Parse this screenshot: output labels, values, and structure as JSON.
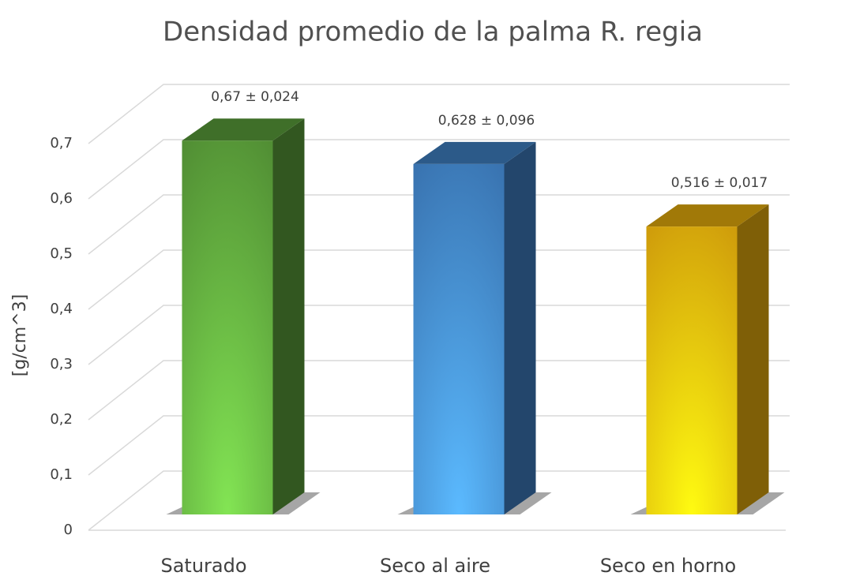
{
  "chart_data": {
    "type": "bar3d",
    "title": "Densidad promedio de la palma R. regia",
    "ylabel": "[g/cm^3]",
    "categories": [
      "Saturado",
      "Seco al aire",
      "Seco en horno"
    ],
    "values": [
      0.67,
      0.628,
      0.516
    ],
    "value_labels": [
      "0,67 ± 0,024",
      "0,628 ± 0,096",
      "0,516 ± 0,017"
    ],
    "colors": [
      "#5a9e3a",
      "#3f80c4",
      "#e6ad0c"
    ],
    "ylim": [
      0,
      0.7
    ],
    "yticks": [
      0,
      {
        "value": 0.1,
        "label": "0,1"
      },
      {
        "value": 0.2,
        "label": "0,2"
      },
      {
        "value": 0.3,
        "label": "0,3"
      },
      {
        "value": 0.4,
        "label": "0,4"
      },
      {
        "value": 0.5,
        "label": "0,5"
      },
      {
        "value": 0.6,
        "label": "0,6"
      },
      {
        "value": 0.7,
        "label": "0,7"
      }
    ],
    "grid": true
  }
}
